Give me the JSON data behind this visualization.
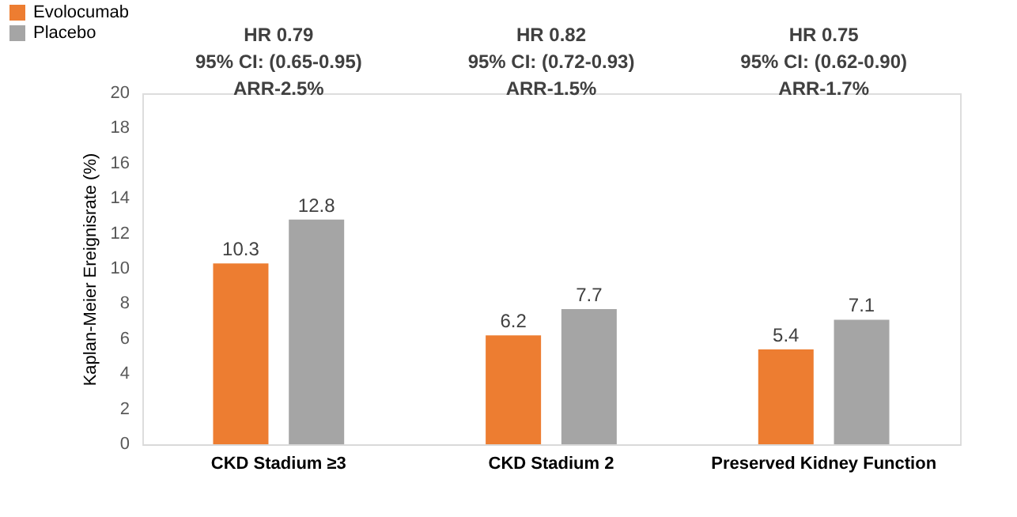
{
  "chart_data": {
    "type": "bar",
    "ylabel": "Kaplan-Meier Ereignisrate (%)",
    "categories": [
      "CKD Stadium ≥3",
      "CKD Stadium 2",
      "Preserved Kidney Function"
    ],
    "series": [
      {
        "name": "Evolocumab",
        "color": "#ed7d31",
        "values": [
          10.3,
          6.2,
          5.4
        ]
      },
      {
        "name": "Placebo",
        "color": "#a5a5a5",
        "values": [
          12.8,
          7.7,
          7.1
        ]
      }
    ],
    "ylim": [
      0,
      20
    ],
    "yticks": [
      0,
      2,
      4,
      6,
      8,
      10,
      12,
      14,
      16,
      18,
      20
    ],
    "data_labels": true,
    "grid": false,
    "legend": "top left",
    "annotations": [
      "HR 0.79\n95% CI: (0.65-0.95)\n\nARR-2.5%",
      "HR 0.82\n95% CI: (0.72-0.93)\n\nARR-1.5%",
      "HR 0.75\n95% CI: (0.62-0.90)\n\nARR-1.7%"
    ]
  }
}
